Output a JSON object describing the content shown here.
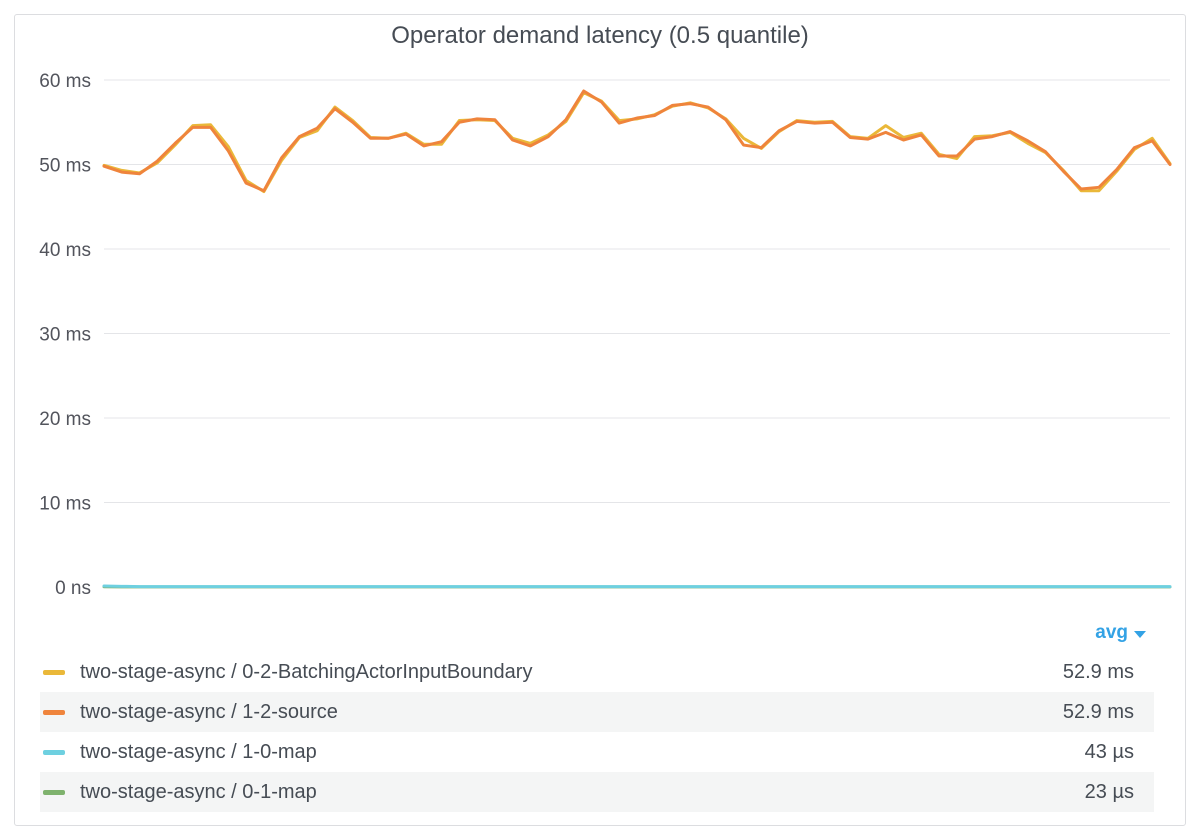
{
  "panel": {
    "title": "Operator demand latency (0.5 quantile)"
  },
  "legend": {
    "header": "avg",
    "series": [
      {
        "name": "two-stage-async / 0-2-BatchingActorInputBoundary",
        "avg": "52.9 ms",
        "color": "#eab839"
      },
      {
        "name": "two-stage-async / 1-2-source",
        "avg": "52.9 ms",
        "color": "#ef843c"
      },
      {
        "name": "two-stage-async / 1-0-map",
        "avg": "43 µs",
        "color": "#6ed0e0"
      },
      {
        "name": "two-stage-async / 0-1-map",
        "avg": "23 µs",
        "color": "#7eb26d"
      }
    ]
  },
  "chart_data": {
    "type": "line",
    "title": "Operator demand latency (0.5 quantile)",
    "ylim": [
      0,
      60
    ],
    "yticks": [
      "0 ns",
      "10 ms",
      "20 ms",
      "30 ms",
      "40 ms",
      "50 ms",
      "60 ms"
    ],
    "ytick_values": [
      0,
      10,
      20,
      30,
      40,
      50,
      60
    ],
    "grid": true,
    "legend_position": "bottom",
    "series": [
      {
        "name": "two-stage-async / 0-2-BatchingActorInputBoundary",
        "color": "#eab839",
        "values": [
          49.9,
          49.3,
          49.0,
          50.2,
          52.3,
          54.6,
          54.7,
          52.1,
          48.1,
          46.8,
          50.5,
          53.2,
          54.0,
          56.8,
          55.2,
          53.2,
          53.1,
          53.7,
          52.4,
          52.4,
          55.2,
          55.3,
          55.2,
          53.1,
          52.5,
          53.5,
          55.1,
          58.5,
          57.5,
          55.2,
          55.4,
          55.9,
          56.9,
          57.3,
          56.7,
          55.4,
          53.1,
          51.9,
          53.9,
          55.2,
          55.0,
          55.1,
          53.3,
          53.1,
          54.6,
          53.2,
          53.7,
          51.2,
          50.7,
          53.3,
          53.4,
          53.8,
          52.5,
          51.4,
          49.3,
          46.9,
          46.9,
          49.2,
          51.8,
          53.1,
          50.1
        ]
      },
      {
        "name": "two-stage-async / 1-2-source",
        "color": "#ef843c",
        "values": [
          49.8,
          49.1,
          48.9,
          50.4,
          52.5,
          54.4,
          54.4,
          51.6,
          47.8,
          46.9,
          50.8,
          53.3,
          54.3,
          56.6,
          55.0,
          53.1,
          53.1,
          53.6,
          52.2,
          52.7,
          55.0,
          55.4,
          55.3,
          52.9,
          52.2,
          53.3,
          55.3,
          58.7,
          57.4,
          54.9,
          55.5,
          55.8,
          57.0,
          57.2,
          56.8,
          55.3,
          52.3,
          52.0,
          54.0,
          55.1,
          54.9,
          55.0,
          53.2,
          53.0,
          53.8,
          52.9,
          53.5,
          51.0,
          51.0,
          53.0,
          53.3,
          53.9,
          52.8,
          51.5,
          49.2,
          47.1,
          47.3,
          49.4,
          52.0,
          52.8,
          50.0
        ]
      },
      {
        "name": "two-stage-async / 1-0-map",
        "color": "#6ed0e0",
        "values": [
          0.12,
          0.08,
          0.05,
          0.05,
          0.04,
          0.04,
          0.04,
          0.04,
          0.04,
          0.04,
          0.04,
          0.04,
          0.04,
          0.04,
          0.04,
          0.04,
          0.04,
          0.04,
          0.04,
          0.04,
          0.04,
          0.04,
          0.04,
          0.04,
          0.04,
          0.04,
          0.04,
          0.04,
          0.04,
          0.04,
          0.04,
          0.04,
          0.04,
          0.04,
          0.04,
          0.04,
          0.04,
          0.04,
          0.04,
          0.04,
          0.04,
          0.04,
          0.04,
          0.04,
          0.04,
          0.04,
          0.04,
          0.04,
          0.04,
          0.04,
          0.04,
          0.04,
          0.04,
          0.04,
          0.04,
          0.04,
          0.04,
          0.04,
          0.04,
          0.04,
          0.04
        ]
      },
      {
        "name": "two-stage-async / 0-1-map",
        "color": "#7eb26d",
        "values": [
          0.03,
          0.02,
          0.02,
          0.02,
          0.02,
          0.02,
          0.02,
          0.02,
          0.02,
          0.02,
          0.02,
          0.02,
          0.02,
          0.02,
          0.02,
          0.02,
          0.02,
          0.02,
          0.02,
          0.02,
          0.02,
          0.02,
          0.02,
          0.02,
          0.02,
          0.02,
          0.02,
          0.02,
          0.02,
          0.02,
          0.02,
          0.02,
          0.02,
          0.02,
          0.02,
          0.02,
          0.02,
          0.02,
          0.02,
          0.02,
          0.02,
          0.02,
          0.02,
          0.02,
          0.02,
          0.02,
          0.02,
          0.02,
          0.02,
          0.02,
          0.02,
          0.02,
          0.02,
          0.02,
          0.02,
          0.02,
          0.02,
          0.02,
          0.02,
          0.02,
          0.02
        ]
      }
    ]
  }
}
